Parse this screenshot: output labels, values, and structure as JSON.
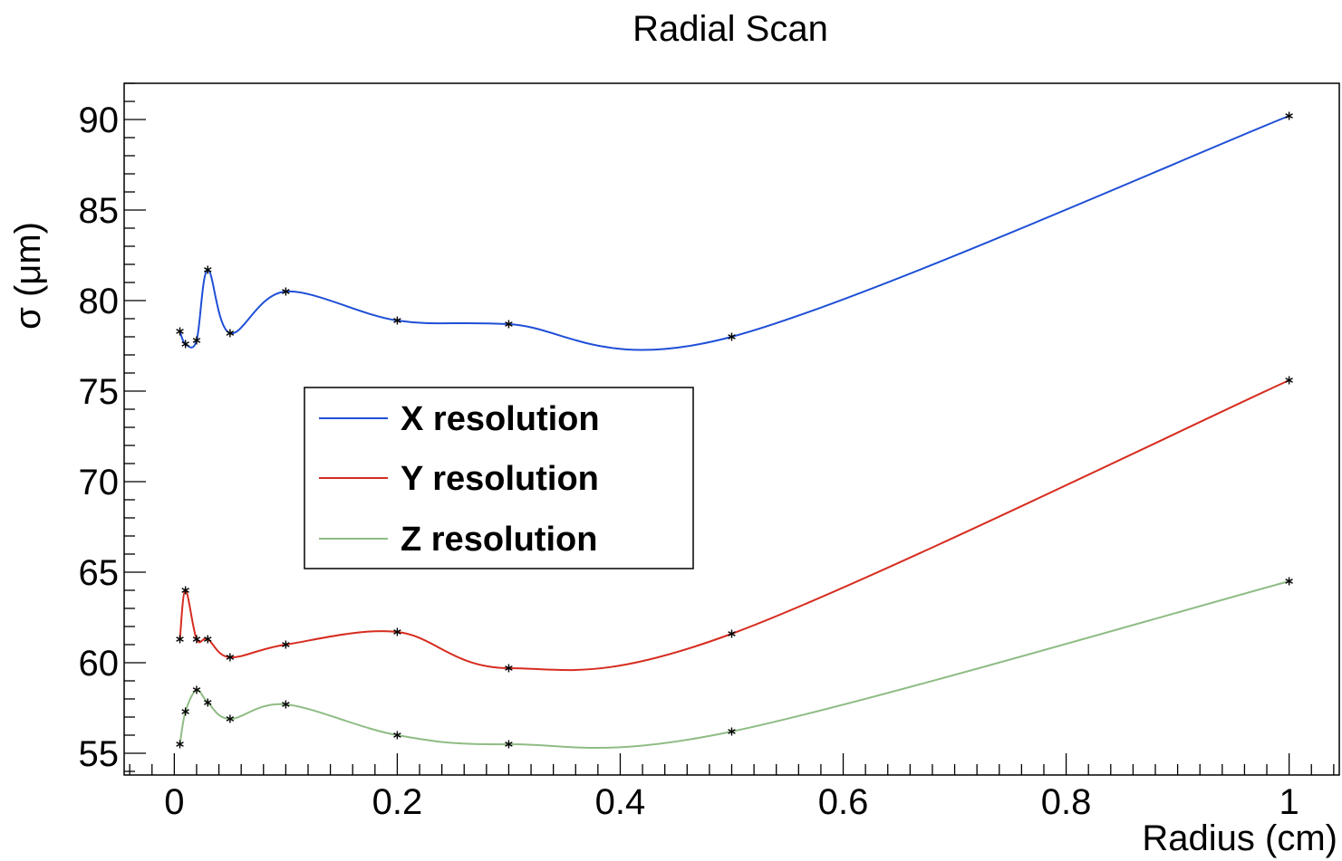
{
  "chart_data": {
    "type": "line",
    "title": "Radial Scan",
    "xlabel": "Radius (cm)",
    "ylabel": "σ (μm)",
    "xlim": [
      -0.045,
      1.045
    ],
    "ylim": [
      53.8,
      92.0
    ],
    "grid": false,
    "legend_position": "center-left",
    "x_ticks": [
      0,
      0.2,
      0.4,
      0.6,
      0.8,
      1
    ],
    "x_tick_labels": [
      "0",
      "0.2",
      "0.4",
      "0.6",
      "0.8",
      "1"
    ],
    "y_ticks": [
      55,
      60,
      65,
      70,
      75,
      80,
      85,
      90
    ],
    "y_tick_labels": [
      "55",
      "60",
      "65",
      "70",
      "75",
      "80",
      "85",
      "90"
    ],
    "x": [
      0.005,
      0.01,
      0.02,
      0.03,
      0.05,
      0.1,
      0.2,
      0.3,
      0.5,
      1.0
    ],
    "series": [
      {
        "name": "X resolution",
        "color": "#1f4fd6",
        "values": [
          78.3,
          77.6,
          77.8,
          81.7,
          78.2,
          80.5,
          78.9,
          78.7,
          78.0,
          90.2
        ]
      },
      {
        "name": "Y resolution",
        "color": "#d62c1f",
        "values": [
          61.3,
          64.0,
          61.3,
          61.3,
          60.3,
          61.0,
          61.7,
          59.7,
          61.6,
          75.6
        ]
      },
      {
        "name": "Z resolution",
        "color": "#8fbc84",
        "values": [
          55.5,
          57.3,
          58.5,
          57.8,
          56.9,
          57.7,
          56.0,
          55.5,
          56.2,
          64.5
        ]
      }
    ],
    "marker_color": "#000000",
    "marker_symbol": "*"
  }
}
